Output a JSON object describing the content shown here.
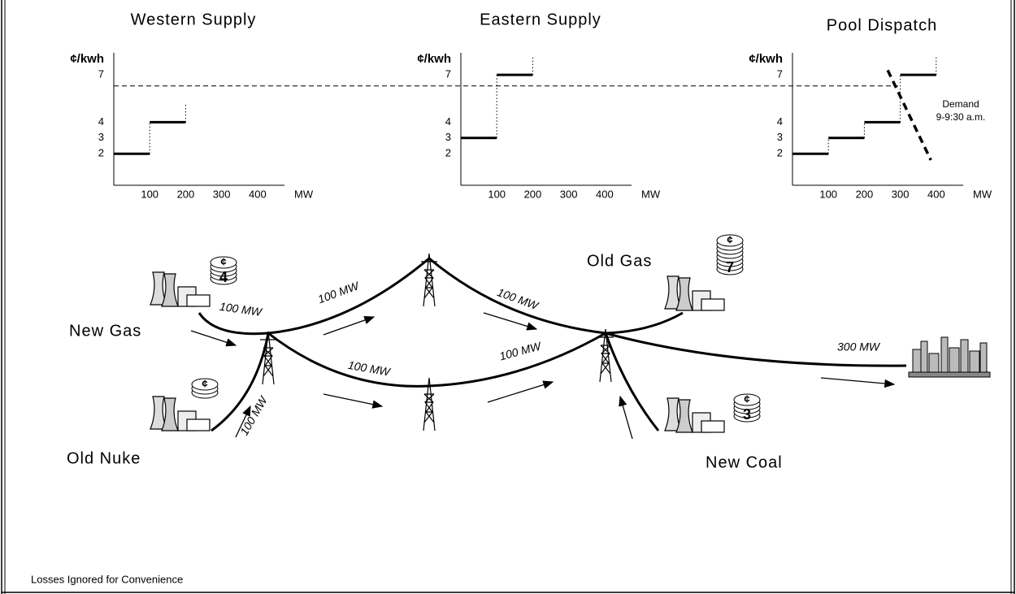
{
  "charts": [
    {
      "title": "Western Supply",
      "y_label": "¢/kwh",
      "x_label": "MW",
      "xlim": [
        0,
        475
      ],
      "ylim": [
        0,
        8.4
      ],
      "xticks": [
        100,
        200,
        300,
        400
      ],
      "yticks": [
        2,
        3,
        4,
        7
      ],
      "steps": [
        {
          "from": 0,
          "to": 100,
          "price": 2
        },
        {
          "from": 100,
          "to": 200,
          "price": 4
        }
      ]
    },
    {
      "title": "Eastern Supply",
      "y_label": "¢/kwh",
      "x_label": "MW",
      "xlim": [
        0,
        475
      ],
      "ylim": [
        0,
        8.4
      ],
      "xticks": [
        100,
        200,
        300,
        400
      ],
      "yticks": [
        2,
        3,
        4,
        7
      ],
      "steps": [
        {
          "from": 0,
          "to": 100,
          "price": 3
        },
        {
          "from": 100,
          "to": 200,
          "price": 7
        }
      ]
    },
    {
      "title": "Pool Dispatch",
      "y_label": "¢/kwh",
      "x_label": "MW",
      "xlim": [
        0,
        475
      ],
      "ylim": [
        0,
        8.4
      ],
      "xticks": [
        100,
        200,
        300,
        400
      ],
      "yticks": [
        2,
        3,
        4,
        7
      ],
      "steps": [
        {
          "from": 0,
          "to": 100,
          "price": 2
        },
        {
          "from": 100,
          "to": 200,
          "price": 3
        },
        {
          "from": 200,
          "to": 300,
          "price": 4
        },
        {
          "from": 300,
          "to": 400,
          "price": 7
        }
      ],
      "demand": {
        "label": [
          "Demand",
          "9-9:30 a.m."
        ],
        "x": [
          265,
          385
        ],
        "y": [
          7.3,
          1.6
        ]
      }
    }
  ],
  "price_line": 6.3,
  "cost_symbol": "¢",
  "nodes": [
    {
      "label": "New Gas",
      "cost": "4"
    },
    {
      "label": "Old Nuke"
    },
    {
      "label": "Old Gas",
      "cost": "7"
    },
    {
      "label": "New Coal",
      "cost": "3"
    }
  ],
  "flows": [
    "100 MW",
    "100 MW",
    "100 MW",
    "100 MW",
    "100 MW",
    "100 MW",
    "300 MW"
  ],
  "footer": "Losses Ignored for Convenience"
}
